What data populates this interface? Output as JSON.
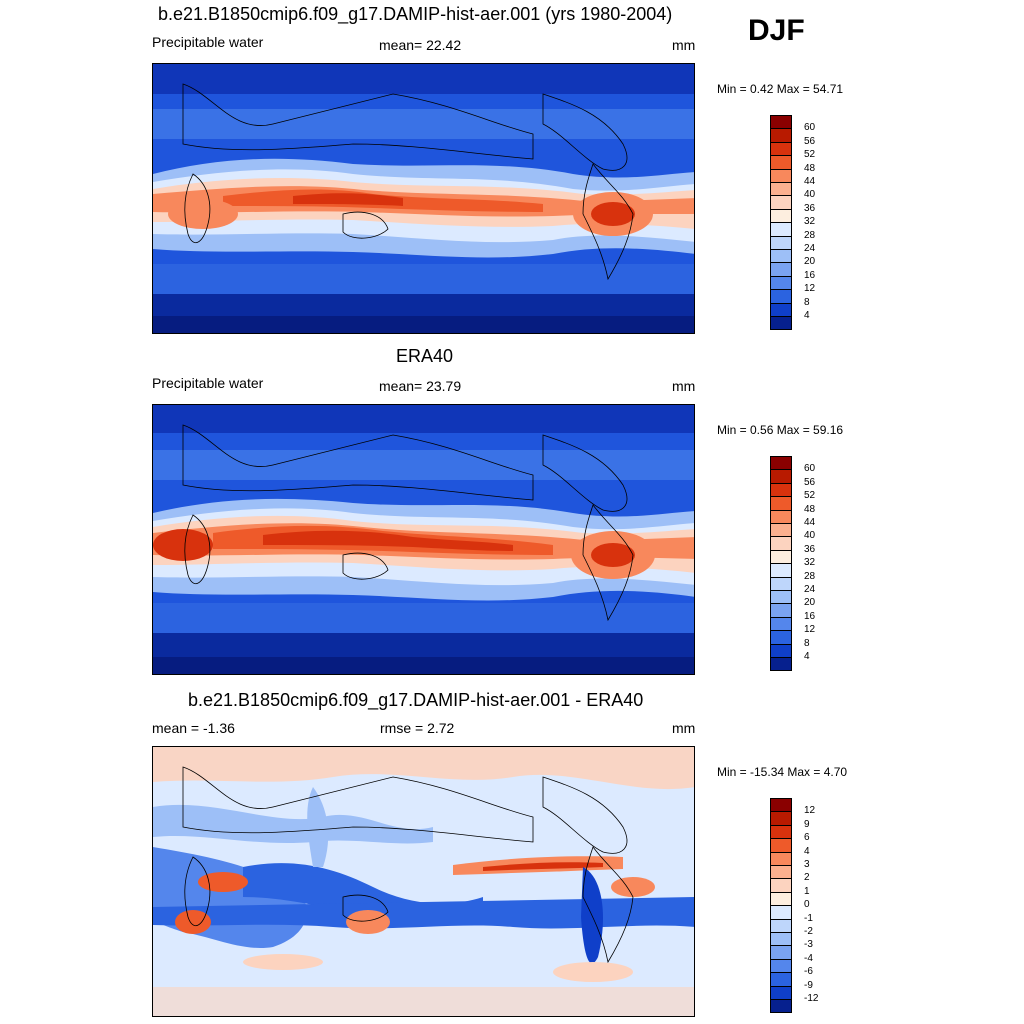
{
  "season": "DJF",
  "panels": [
    {
      "title": "b.e21.B1850cmip6.f09_g17.DAMIP-hist-aer.001 (yrs 1980-2004)",
      "left_label": "Precipitable water",
      "center_label": "mean=  22.42",
      "units": "mm",
      "minmax": "Min =   0.42 Max =  54.71",
      "levels": [
        "60",
        "56",
        "52",
        "48",
        "44",
        "40",
        "36",
        "32",
        "28",
        "24",
        "20",
        "16",
        "12",
        "8",
        "4"
      ],
      "colors": [
        "#8a0000",
        "#b81a00",
        "#d8320d",
        "#ee5a2a",
        "#f8885c",
        "#fbb08f",
        "#fcd3bf",
        "#fdeedf",
        "#dceaff",
        "#bed6fb",
        "#9dbff7",
        "#7aa3f1",
        "#5486ec",
        "#2b63e0",
        "#0f3fc9",
        "#06208e"
      ]
    },
    {
      "title": "ERA40",
      "left_label": "Precipitable water",
      "center_label": "mean=  23.79",
      "units": "mm",
      "minmax": "Min =   0.56 Max =  59.16",
      "levels": [
        "60",
        "56",
        "52",
        "48",
        "44",
        "40",
        "36",
        "32",
        "28",
        "24",
        "20",
        "16",
        "12",
        "8",
        "4"
      ],
      "colors": [
        "#8a0000",
        "#b81a00",
        "#d8320d",
        "#ee5a2a",
        "#f8885c",
        "#fbb08f",
        "#fcd3bf",
        "#fdeedf",
        "#dceaff",
        "#bed6fb",
        "#9dbff7",
        "#7aa3f1",
        "#5486ec",
        "#2b63e0",
        "#0f3fc9",
        "#06208e"
      ]
    },
    {
      "title": "b.e21.B1850cmip6.f09_g17.DAMIP-hist-aer.001 - ERA40",
      "left_label": "mean =  -1.36",
      "center_label": "rmse =   2.72",
      "units": "mm",
      "minmax": "Min = -15.34 Max =   4.70",
      "levels": [
        "12",
        "9",
        "6",
        "4",
        "3",
        "2",
        "1",
        "0",
        "-1",
        "-2",
        "-3",
        "-4",
        "-6",
        "-9",
        "-12"
      ],
      "colors": [
        "#8a0000",
        "#b81a00",
        "#d8320d",
        "#ee5a2a",
        "#f8885c",
        "#fbb08f",
        "#fcd3bf",
        "#fdeedf",
        "#dceaff",
        "#bed6fb",
        "#9dbff7",
        "#7aa3f1",
        "#5486ec",
        "#2b63e0",
        "#0f3fc9",
        "#06208e"
      ]
    }
  ]
}
